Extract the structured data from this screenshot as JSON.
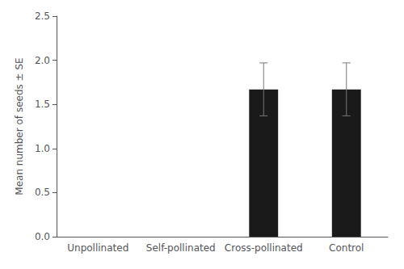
{
  "chart_data": {
    "type": "bar",
    "categories": [
      "Unpollinated",
      "Self-pollinated",
      "Cross-pollinated",
      "Control"
    ],
    "values": [
      0.0,
      0.0,
      1.67,
      1.67
    ],
    "errors": [
      0.0,
      0.0,
      0.3,
      0.3
    ],
    "color": "#1a1a1a",
    "ylabel": "Mean number of seeds ± SE",
    "ylim": [
      0,
      2.5
    ],
    "yticks": [
      {
        "value": 0,
        "label": "0.0"
      },
      0.5,
      {
        "value": 1,
        "label": "1.0"
      },
      1.5,
      {
        "value": 2,
        "label": "2.0"
      },
      2.5
    ],
    "grid": false
  }
}
